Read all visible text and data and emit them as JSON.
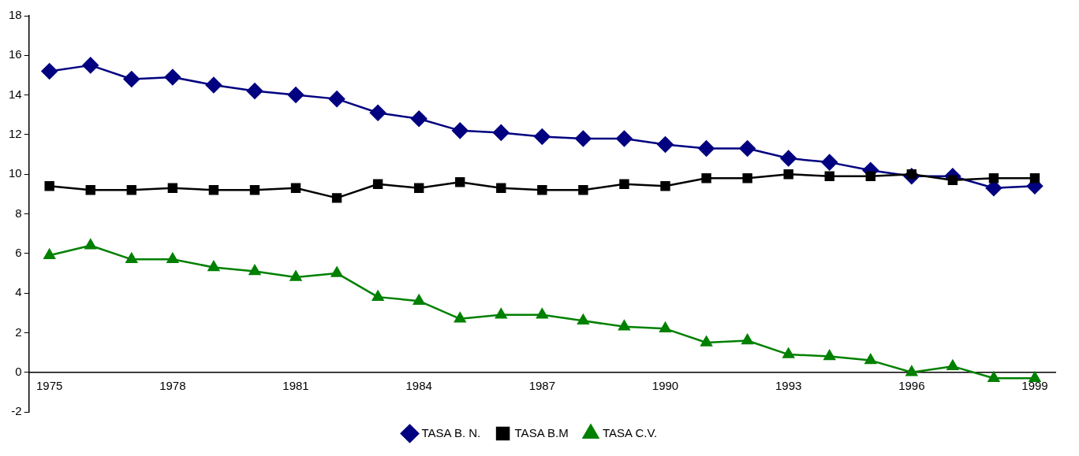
{
  "chart_data": {
    "type": "line",
    "categories": [
      "1975",
      null,
      null,
      "1978",
      null,
      null,
      "1981",
      null,
      null,
      "1984",
      null,
      null,
      "1987",
      null,
      null,
      "1990",
      null,
      null,
      "1993",
      null,
      null,
      "1996",
      null,
      null,
      "1999"
    ],
    "series": [
      {
        "name": "TASA B. N.",
        "color": "#000080",
        "marker": "diamond",
        "values": [
          15.2,
          15.5,
          14.8,
          14.9,
          14.5,
          14.2,
          14.0,
          13.8,
          13.1,
          12.8,
          12.2,
          12.1,
          11.9,
          11.8,
          11.8,
          11.5,
          11.3,
          11.3,
          10.8,
          10.6,
          10.2,
          9.9,
          9.9,
          9.3,
          9.4
        ]
      },
      {
        "name": "TASA B.M",
        "color": "#000000",
        "marker": "square",
        "values": [
          9.4,
          9.2,
          9.2,
          9.3,
          9.2,
          9.2,
          9.3,
          8.8,
          9.5,
          9.3,
          9.6,
          9.3,
          9.2,
          9.2,
          9.5,
          9.4,
          9.8,
          9.8,
          10.0,
          9.9,
          9.9,
          10.0,
          9.7,
          9.8,
          9.8
        ]
      },
      {
        "name": "TASA C.V.",
        "color": "#008000",
        "marker": "triangle",
        "values": [
          5.9,
          6.4,
          5.7,
          5.7,
          5.3,
          5.1,
          4.8,
          5.0,
          3.8,
          3.6,
          2.7,
          2.9,
          2.9,
          2.6,
          2.3,
          2.2,
          1.5,
          1.6,
          0.9,
          0.8,
          0.6,
          0.0,
          0.3,
          -0.3,
          -0.3
        ]
      }
    ],
    "ylim": [
      -2,
      18
    ],
    "yticks": [
      -2,
      0,
      2,
      4,
      6,
      8,
      10,
      12,
      14,
      16,
      18
    ],
    "grid": false,
    "legend": "bottom"
  }
}
